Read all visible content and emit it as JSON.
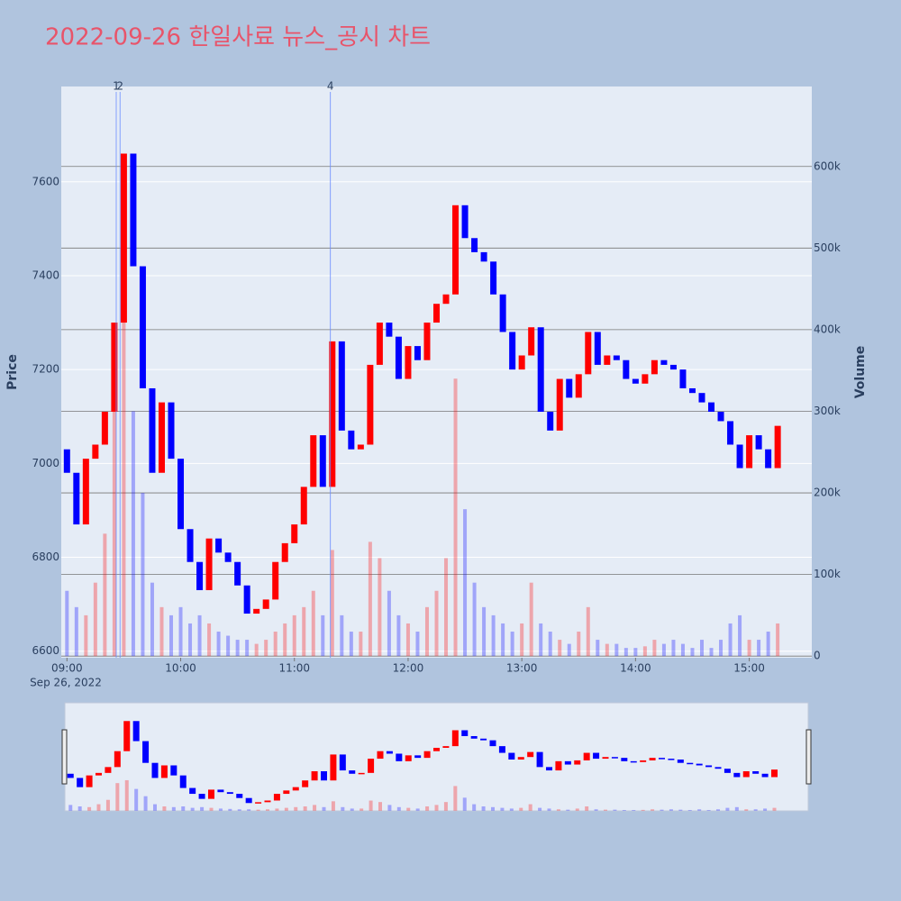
{
  "chart_data": {
    "type": "candlestick",
    "title": "2022-09-26 한일사료 뉴스_공시 차트",
    "y_label": "Price",
    "y2_label": "Volume",
    "x_date_label": "Sep 26, 2022",
    "increasing_color": "#ff0000",
    "decreasing_color": "#0000ff",
    "xlim": [
      "2022-09-26 08:57",
      "2022-09-26 15:33"
    ],
    "xticks": [
      {
        "value": "2022-09-26 09:00",
        "label": "09:00"
      },
      {
        "value": "2022-09-26 10:00",
        "label": "10:00"
      },
      {
        "value": "2022-09-26 11:00",
        "label": "11:00"
      },
      {
        "value": "2022-09-26 12:00",
        "label": "12:00"
      },
      {
        "value": "2022-09-26 13:00",
        "label": "13:00"
      },
      {
        "value": "2022-09-26 14:00",
        "label": "14:00"
      },
      {
        "value": "2022-09-26 15:00",
        "label": "15:00"
      }
    ],
    "ylim": [
      6586,
      7803
    ],
    "yticks": [
      6600,
      6800,
      7000,
      7200,
      7400,
      7600
    ],
    "y2lim": [
      -2000,
      698000
    ],
    "y2ticks": [
      0,
      {
        "value": 100000,
        "label": "100k"
      },
      {
        "value": 200000,
        "label": "200k"
      },
      {
        "value": 300000,
        "label": "300k"
      },
      {
        "value": 400000,
        "label": "400k"
      },
      {
        "value": 500000,
        "label": "500k"
      },
      {
        "value": 600000,
        "label": "600k"
      }
    ],
    "annotations": [
      {
        "text": "1",
        "x": "2022-09-26 09:26"
      },
      {
        "text": "2",
        "x": "2022-09-26 09:28"
      },
      {
        "text": "4",
        "x": "2022-09-26 11:19"
      }
    ],
    "x": [
      "2022-09-26 09:00",
      "2022-09-26 09:05",
      "2022-09-26 09:10",
      "2022-09-26 09:15",
      "2022-09-26 09:20",
      "2022-09-26 09:25",
      "2022-09-26 09:30",
      "2022-09-26 09:35",
      "2022-09-26 09:40",
      "2022-09-26 09:45",
      "2022-09-26 09:50",
      "2022-09-26 09:55",
      "2022-09-26 10:00",
      "2022-09-26 10:05",
      "2022-09-26 10:10",
      "2022-09-26 10:15",
      "2022-09-26 10:20",
      "2022-09-26 10:25",
      "2022-09-26 10:30",
      "2022-09-26 10:35",
      "2022-09-26 10:40",
      "2022-09-26 10:45",
      "2022-09-26 10:50",
      "2022-09-26 10:55",
      "2022-09-26 11:00",
      "2022-09-26 11:05",
      "2022-09-26 11:10",
      "2022-09-26 11:15",
      "2022-09-26 11:20",
      "2022-09-26 11:25",
      "2022-09-26 11:30",
      "2022-09-26 11:35",
      "2022-09-26 11:40",
      "2022-09-26 11:45",
      "2022-09-26 11:50",
      "2022-09-26 11:55",
      "2022-09-26 12:00",
      "2022-09-26 12:05",
      "2022-09-26 12:10",
      "2022-09-26 12:15",
      "2022-09-26 12:20",
      "2022-09-26 12:25",
      "2022-09-26 12:30",
      "2022-09-26 12:35",
      "2022-09-26 12:40",
      "2022-09-26 12:45",
      "2022-09-26 12:50",
      "2022-09-26 12:55",
      "2022-09-26 13:00",
      "2022-09-26 13:05",
      "2022-09-26 13:10",
      "2022-09-26 13:15",
      "2022-09-26 13:20",
      "2022-09-26 13:25",
      "2022-09-26 13:30",
      "2022-09-26 13:35",
      "2022-09-26 13:40",
      "2022-09-26 13:45",
      "2022-09-26 13:50",
      "2022-09-26 13:55",
      "2022-09-26 14:00",
      "2022-09-26 14:05",
      "2022-09-26 14:10",
      "2022-09-26 14:15",
      "2022-09-26 14:20",
      "2022-09-26 14:25",
      "2022-09-26 14:30",
      "2022-09-26 14:35",
      "2022-09-26 14:40",
      "2022-09-26 14:45",
      "2022-09-26 14:50",
      "2022-09-26 14:55",
      "2022-09-26 15:00",
      "2022-09-26 15:05",
      "2022-09-26 15:10",
      "2022-09-26 15:15"
    ],
    "open": [
      7030,
      6980,
      6870,
      7010,
      7040,
      7110,
      7300,
      7660,
      7420,
      7160,
      6980,
      7130,
      7010,
      6860,
      6790,
      6730,
      6840,
      6810,
      6790,
      6740,
      6680,
      6690,
      6710,
      6790,
      6830,
      6870,
      6950,
      7060,
      6950,
      7260,
      7070,
      7030,
      7040,
      7210,
      7300,
      7270,
      7180,
      7250,
      7220,
      7300,
      7340,
      7360,
      7550,
      7480,
      7450,
      7430,
      7360,
      7280,
      7200,
      7230,
      7290,
      7110,
      7070,
      7180,
      7140,
      7190,
      7280,
      7210,
      7230,
      7220,
      7180,
      7170,
      7190,
      7220,
      7210,
      7200,
      7160,
      7150,
      7130,
      7110,
      7090,
      7040,
      6990,
      7060,
      7030,
      6990
    ],
    "close": [
      6980,
      6870,
      7010,
      7040,
      7110,
      7300,
      7660,
      7420,
      7160,
      6980,
      7130,
      7010,
      6860,
      6790,
      6730,
      6840,
      6810,
      6790,
      6740,
      6680,
      6690,
      6710,
      6790,
      6830,
      6870,
      6950,
      7060,
      6950,
      7260,
      7070,
      7030,
      7040,
      7210,
      7300,
      7270,
      7180,
      7250,
      7220,
      7300,
      7340,
      7360,
      7550,
      7480,
      7450,
      7430,
      7360,
      7280,
      7200,
      7230,
      7290,
      7110,
      7070,
      7180,
      7140,
      7190,
      7280,
      7210,
      7230,
      7220,
      7180,
      7170,
      7190,
      7220,
      7210,
      7200,
      7160,
      7150,
      7130,
      7110,
      7090,
      7040,
      6990,
      7060,
      7030,
      6990,
      7080
    ],
    "volume": [
      80000,
      60000,
      50000,
      90000,
      150000,
      380000,
      420000,
      300000,
      200000,
      90000,
      60000,
      50000,
      60000,
      40000,
      50000,
      40000,
      30000,
      25000,
      20000,
      20000,
      15000,
      20000,
      30000,
      40000,
      50000,
      60000,
      80000,
      50000,
      130000,
      50000,
      30000,
      30000,
      140000,
      120000,
      80000,
      50000,
      40000,
      30000,
      60000,
      80000,
      120000,
      340000,
      180000,
      90000,
      60000,
      50000,
      40000,
      30000,
      40000,
      90000,
      40000,
      30000,
      20000,
      15000,
      30000,
      60000,
      20000,
      15000,
      15000,
      10000,
      10000,
      12000,
      20000,
      15000,
      20000,
      15000,
      10000,
      20000,
      10000,
      20000,
      40000,
      50000,
      20000,
      20000,
      30000,
      40000
    ]
  }
}
